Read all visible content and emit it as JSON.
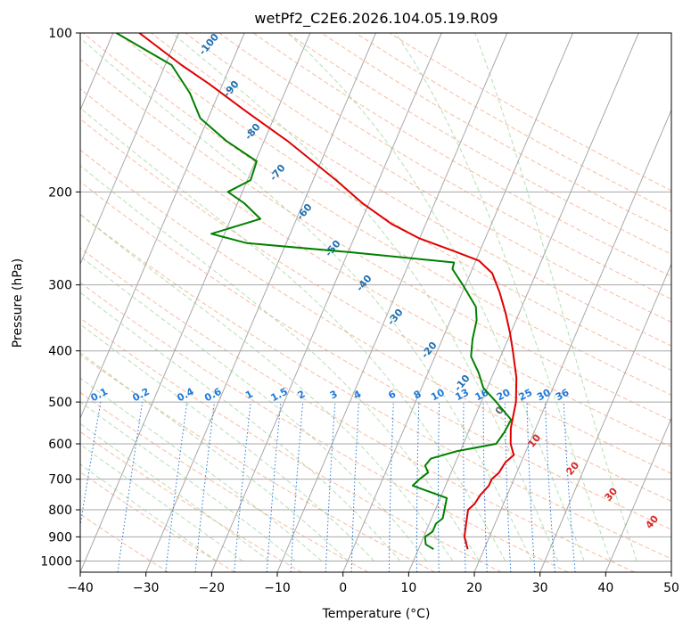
{
  "chart_data": {
    "type": "line",
    "title": "wetPf2_C2E6.2026.104.05.19.R09",
    "xlabel": "Temperature (°C)",
    "ylabel": "Pressure (hPa)",
    "xlim": [
      -40,
      50
    ],
    "ylim": [
      1050,
      100
    ],
    "yscale": "log",
    "skew": 35,
    "x_ticks": [
      "−40",
      "−30",
      "−20",
      "−10",
      "0",
      "10",
      "20",
      "30",
      "40",
      "50"
    ],
    "x_tick_values": [
      -40,
      -30,
      -20,
      -10,
      0,
      10,
      20,
      30,
      40,
      50
    ],
    "y_ticks": [
      "100",
      "200",
      "300",
      "400",
      "500",
      "600",
      "700",
      "800",
      "900",
      "1000"
    ],
    "y_tick_values": [
      100,
      200,
      300,
      400,
      500,
      600,
      700,
      800,
      900,
      1000
    ],
    "grid": true,
    "series": [
      {
        "role": "temperature",
        "color": "#e00000",
        "points": [
          [
            950,
            17.5
          ],
          [
            900,
            16.2
          ],
          [
            850,
            15.6
          ],
          [
            800,
            15.0
          ],
          [
            780,
            15.6
          ],
          [
            750,
            15.9
          ],
          [
            720,
            16.6
          ],
          [
            700,
            16.6
          ],
          [
            680,
            17.3
          ],
          [
            650,
            17.6
          ],
          [
            630,
            18.4
          ],
          [
            600,
            17.2
          ],
          [
            560,
            16.2
          ],
          [
            500,
            15.3
          ],
          [
            450,
            13.8
          ],
          [
            400,
            11.5
          ],
          [
            370,
            9.9
          ],
          [
            340,
            8.0
          ],
          [
            310,
            5.7
          ],
          [
            285,
            3.3
          ],
          [
            270,
            0.5
          ],
          [
            260,
            -3.5
          ],
          [
            245,
            -10.0
          ],
          [
            230,
            -15.2
          ],
          [
            210,
            -21.0
          ],
          [
            190,
            -26.5
          ],
          [
            160,
            -36.5
          ],
          [
            140,
            -45.0
          ],
          [
            125,
            -52.0
          ],
          [
            115,
            -57.5
          ],
          [
            100,
            -66.0
          ]
        ]
      },
      {
        "role": "dewpoint",
        "color": "#008000",
        "points": [
          [
            950,
            12.3
          ],
          [
            930,
            10.8
          ],
          [
            900,
            10.2
          ],
          [
            880,
            11.0
          ],
          [
            850,
            11.0
          ],
          [
            830,
            11.7
          ],
          [
            800,
            11.4
          ],
          [
            760,
            11.0
          ],
          [
            720,
            5.0
          ],
          [
            700,
            5.6
          ],
          [
            680,
            6.5
          ],
          [
            660,
            5.6
          ],
          [
            640,
            6.0
          ],
          [
            620,
            9.4
          ],
          [
            600,
            15.0
          ],
          [
            570,
            15.5
          ],
          [
            540,
            15.7
          ],
          [
            500,
            12.3
          ],
          [
            470,
            9.4
          ],
          [
            440,
            7.7
          ],
          [
            410,
            5.5
          ],
          [
            380,
            4.6
          ],
          [
            350,
            4.0
          ],
          [
            330,
            3.0
          ],
          [
            300,
            -0.4
          ],
          [
            280,
            -3.0
          ],
          [
            272,
            -3.2
          ],
          [
            260,
            -20.0
          ],
          [
            250,
            -36.0
          ],
          [
            240,
            -42.0
          ],
          [
            225,
            -35.5
          ],
          [
            210,
            -39.0
          ],
          [
            200,
            -42.2
          ],
          [
            190,
            -39.5
          ],
          [
            175,
            -39.8
          ],
          [
            160,
            -45.8
          ],
          [
            145,
            -51.2
          ],
          [
            130,
            -54.4
          ],
          [
            115,
            -59.0
          ],
          [
            100,
            -69.5
          ]
        ]
      }
    ],
    "dry_adiabat_labels": [
      "-100",
      "-90",
      "-80",
      "-70",
      "-60",
      "-50",
      "-40",
      "-30",
      "-20",
      "-10",
      "0",
      "10",
      "20",
      "30",
      "40"
    ],
    "mixing_ratio_labels": [
      "0.1",
      "0.2",
      "0.4",
      "0.6",
      "1",
      "1.5",
      "2",
      "3",
      "4",
      "6",
      "8",
      "10",
      "13",
      "16",
      "20",
      "25",
      "30",
      "36"
    ],
    "mixing_ratio_values": [
      0.1,
      0.2,
      0.4,
      0.6,
      1,
      1.5,
      2,
      3,
      4,
      6,
      8,
      10,
      13,
      16,
      20,
      25,
      30,
      36
    ],
    "colors": {
      "isotherm": "#a8a8a8",
      "isobar": "#a8a8a8",
      "dry_adiabat": "#f4a582",
      "moist_adiabat": "#9ed49a",
      "mixing_ratio": "#1f78d8",
      "adiabat_label_cold": "#1f6fb0",
      "adiabat_label_warm": "#d62728"
    }
  }
}
